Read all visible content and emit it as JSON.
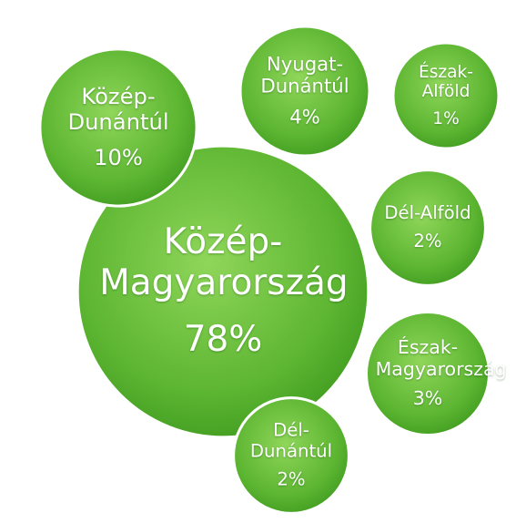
{
  "chart_data": {
    "type": "bubble",
    "categories": [
      "Közép-Magyarország",
      "Közép-Dunántúl",
      "Nyugat-Dunántúl",
      "Észak-Alföld",
      "Dél-Alföld",
      "Észak-Magyarország",
      "Dél-Dunántúl"
    ],
    "values": [
      78,
      10,
      4,
      1,
      2,
      3,
      2
    ],
    "value_labels": [
      "78%",
      "10%",
      "4%",
      "1%",
      "2%",
      "3%",
      "2%"
    ],
    "color": "#5cb531"
  }
}
